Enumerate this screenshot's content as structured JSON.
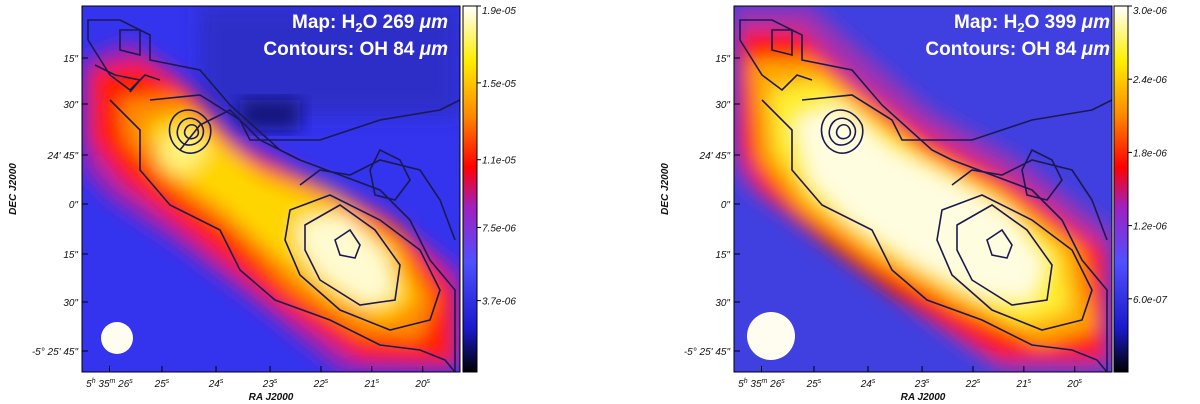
{
  "figure": {
    "panels": [
      {
        "map_label_prefix": "Map: H",
        "map_label_sub": "2",
        "map_label_suffix": "O 269 ",
        "map_label_unit": "μm",
        "contours_label_prefix": "Contours: OH 84 ",
        "contours_label_unit": "μm",
        "colorbar_ticks": [
          "1.9e-05",
          "1.5e-05",
          "1.1e-05",
          "7.5e-06",
          "3.7e-06"
        ],
        "colorbar_ticks_frac": [
          1.0,
          0.79,
          0.58,
          0.395,
          0.195
        ],
        "beam_radius": 16
      },
      {
        "map_label_prefix": "Map: H",
        "map_label_sub": "2",
        "map_label_suffix": "O 399 ",
        "map_label_unit": "μm",
        "contours_label_prefix": "Contours: OH 84 ",
        "contours_label_unit": "μm",
        "colorbar_ticks": [
          "3.0e-06",
          "2.4e-06",
          "1.8e-06",
          "1.2e-06",
          "6.0e-07"
        ],
        "colorbar_ticks_frac": [
          1.0,
          0.8,
          0.6,
          0.4,
          0.2
        ],
        "beam_radius": 24
      }
    ],
    "dec_ticks": [
      "15\"",
      "30\"",
      "24' 45\"",
      "0\"",
      "15\"",
      "30\"",
      "-5° 25' 45\""
    ],
    "ra_ticks": [
      {
        "main": "5",
        "sup1": "h",
        "mid": "35",
        "sup2": "m",
        "last": "26",
        "sup3": "s"
      },
      {
        "main": "25",
        "sup1": "s"
      },
      {
        "main": "24",
        "sup1": "s"
      },
      {
        "main": "23",
        "sup1": "s"
      },
      {
        "main": "22",
        "sup1": "s"
      },
      {
        "main": "21",
        "sup1": "s"
      },
      {
        "main": "20",
        "sup1": "s"
      }
    ],
    "xlabel": "RA J2000",
    "ylabel": "DEC J2000"
  }
}
